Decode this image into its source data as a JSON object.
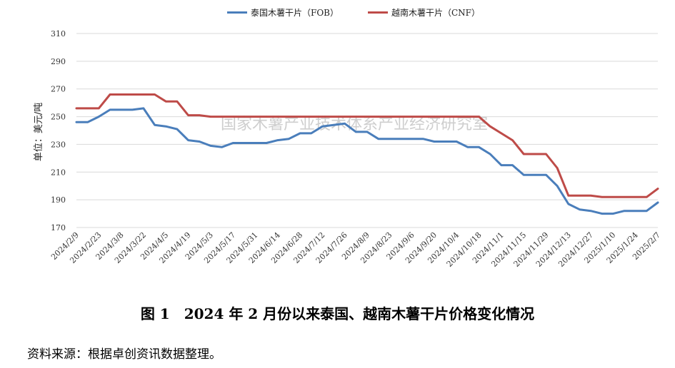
{
  "chart_data": {
    "type": "line",
    "ylabel": "单位：美元/吨",
    "ylim": [
      170,
      310
    ],
    "yticks": [
      170,
      190,
      210,
      230,
      250,
      270,
      290,
      310
    ],
    "grid": "horizontal",
    "legend_position": "top-center",
    "watermark": "国家木薯产业技术体系产业经济研究室",
    "xtick_labels": [
      "2024/2/9",
      "2024/2/23",
      "2024/3/8",
      "2024/3/22",
      "2024/4/5",
      "2024/4/19",
      "2024/5/3",
      "2024/5/17",
      "2024/5/31",
      "2024/6/14",
      "2024/6/28",
      "2024/7/12",
      "2024/7/26",
      "2024/8/9",
      "2024/8/23",
      "2024/9/6",
      "2024/9/20",
      "2024/10/4",
      "2024/10/18",
      "2024/11/1",
      "2024/11/15",
      "2024/11/29",
      "2024/12/13",
      "2024/12/27",
      "2025/1/10",
      "2025/1/24",
      "2025/2/7"
    ],
    "series": [
      {
        "name": "泰国木薯干片（FOB）",
        "color": "#4a7ebb",
        "values": [
          246,
          246,
          250,
          255,
          255,
          255,
          256,
          244,
          243,
          241,
          233,
          232,
          229,
          228,
          231,
          231,
          231,
          231,
          233,
          234,
          238,
          238,
          243,
          244,
          245,
          239,
          239,
          234,
          234,
          234,
          234,
          234,
          232,
          232,
          232,
          228,
          228,
          223,
          215,
          215,
          208,
          208,
          208,
          200,
          187,
          183,
          182,
          180,
          180,
          182,
          182,
          182,
          188
        ]
      },
      {
        "name": "越南木薯干片（CNF）",
        "color": "#be4b48",
        "values": [
          256,
          256,
          256,
          266,
          266,
          266,
          266,
          266,
          261,
          261,
          251,
          251,
          250,
          250,
          250,
          250,
          250,
          250,
          250,
          250,
          250,
          250,
          250,
          250,
          250,
          250,
          250,
          250,
          250,
          250,
          250,
          250,
          250,
          250,
          250,
          250,
          250,
          243,
          238,
          233,
          223,
          223,
          223,
          213,
          193,
          193,
          193,
          192,
          192,
          192,
          192,
          192,
          198
        ]
      }
    ]
  },
  "caption": "图 1　2024 年 2 月份以来泰国、越南木薯干片价格变化情况",
  "source": "资料来源：根据卓创资讯数据整理。"
}
